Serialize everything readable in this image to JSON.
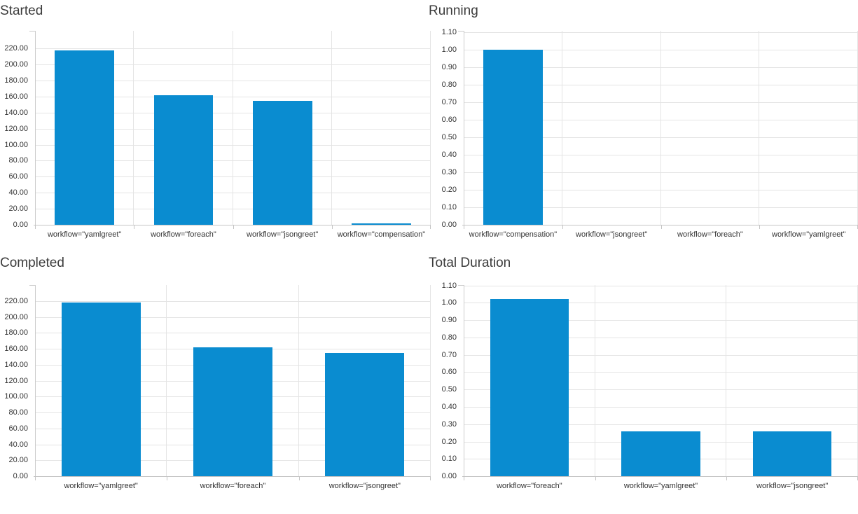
{
  "page": {
    "background": "#ffffff"
  },
  "colors": {
    "bar": "#0a8cd0",
    "grid": "#e4e4e4",
    "axis": "#c4c4c4",
    "tick_label": "#333333",
    "title": "#3c3c3c"
  },
  "chart_data": [
    {
      "id": "started",
      "type": "bar",
      "title": "Started",
      "categories": [
        "workflow=\"yamlgreet\"",
        "workflow=\"foreach\"",
        "workflow=\"jsongreet\"",
        "workflow=\"compensation\""
      ],
      "values": [
        218,
        162,
        155,
        2
      ],
      "y_ticks": [
        "0.00",
        "20.00",
        "40.00",
        "60.00",
        "80.00",
        "100.00",
        "120.00",
        "140.00",
        "160.00",
        "180.00",
        "200.00",
        "220.00"
      ],
      "ylim": [
        0,
        242
      ],
      "xlabel": "",
      "ylabel": "",
      "grid": true,
      "legend": false,
      "bar_color": "#0a8cd0"
    },
    {
      "id": "running",
      "type": "bar",
      "title": "Running",
      "categories": [
        "workflow=\"compensation\"",
        "workflow=\"jsongreet\"",
        "workflow=\"foreach\"",
        "workflow=\"yamlgreet\""
      ],
      "values": [
        1.0,
        0,
        0,
        0
      ],
      "y_ticks": [
        "0.00",
        "0.10",
        "0.20",
        "0.30",
        "0.40",
        "0.50",
        "0.60",
        "0.70",
        "0.80",
        "0.90",
        "1.00",
        "1.10"
      ],
      "ylim": [
        0,
        1.108
      ],
      "xlabel": "",
      "ylabel": "",
      "grid": true,
      "legend": false,
      "bar_color": "#0a8cd0"
    },
    {
      "id": "completed",
      "type": "bar",
      "title": "Completed",
      "categories": [
        "workflow=\"yamlgreet\"",
        "workflow=\"foreach\"",
        "workflow=\"jsongreet\""
      ],
      "values": [
        218,
        162,
        155
      ],
      "y_ticks": [
        "0.00",
        "20.00",
        "40.00",
        "60.00",
        "80.00",
        "100.00",
        "120.00",
        "140.00",
        "160.00",
        "180.00",
        "200.00",
        "220.00"
      ],
      "ylim": [
        0,
        240
      ],
      "xlabel": "",
      "ylabel": "",
      "grid": true,
      "legend": false,
      "bar_color": "#0a8cd0"
    },
    {
      "id": "total_duration",
      "type": "bar",
      "title": "Total Duration",
      "categories": [
        "workflow=\"foreach\"",
        "workflow=\"yamlgreet\"",
        "workflow=\"jsongreet\""
      ],
      "values": [
        1.02,
        0.26,
        0.26
      ],
      "y_ticks": [
        "0.00",
        "0.10",
        "0.20",
        "0.30",
        "0.40",
        "0.50",
        "0.60",
        "0.70",
        "0.80",
        "0.90",
        "1.00",
        "1.10"
      ],
      "ylim": [
        0,
        1.102
      ],
      "xlabel": "",
      "ylabel": "",
      "grid": true,
      "legend": false,
      "bar_color": "#0a8cd0"
    }
  ]
}
